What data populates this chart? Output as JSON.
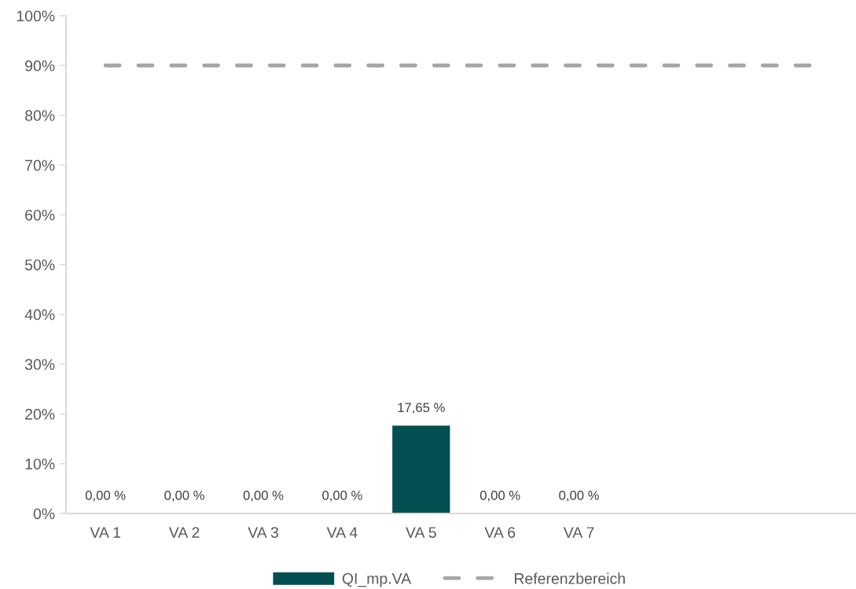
{
  "chart_data": {
    "type": "bar",
    "categories": [
      "VA 1",
      "VA 2",
      "VA 3",
      "VA 4",
      "VA 5",
      "VA 6",
      "VA 7",
      null,
      null,
      null
    ],
    "series": [
      {
        "name": "QI_mp.VA",
        "color": "#014f50",
        "values": [
          0,
          0,
          0,
          0,
          17.65,
          0,
          0,
          null,
          null,
          null
        ],
        "value_labels": [
          "0,00 %",
          "0,00 %",
          "0,00 %",
          "0,00 %",
          "17,65 %",
          "0,00 %",
          "0,00 %",
          null,
          null,
          null
        ]
      },
      {
        "name": "Referenzbereich",
        "type": "line",
        "color": "#a6a6a6",
        "line_style": "dashed",
        "values": [
          90,
          90,
          90,
          90,
          90,
          90,
          90,
          90,
          90,
          90
        ]
      }
    ],
    "ylim": [
      0,
      100
    ],
    "yticks": [
      {
        "value": 0,
        "label": "0%"
      },
      {
        "value": 10,
        "label": "10%"
      },
      {
        "value": 20,
        "label": "20%"
      },
      {
        "value": 30,
        "label": "30%"
      },
      {
        "value": 40,
        "label": "40%"
      },
      {
        "value": 50,
        "label": "50%"
      },
      {
        "value": 60,
        "label": "60%"
      },
      {
        "value": 70,
        "label": "70%"
      },
      {
        "value": 80,
        "label": "80%"
      },
      {
        "value": 90,
        "label": "90%"
      },
      {
        "value": 100,
        "label": "100%"
      }
    ],
    "grid": false,
    "legend": "bottom"
  }
}
